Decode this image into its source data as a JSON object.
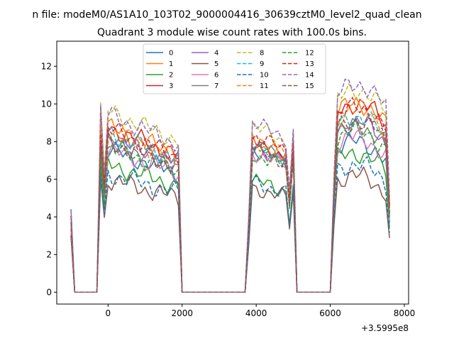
{
  "chart_data": {
    "type": "line",
    "suptitle": "n file: modeM0/AS1A10_103T02_9000004416_30639cztM0_level2_quad_clean",
    "title": "Quadrant 3 module wise count rates with 100.0s bins.",
    "xlabel": "",
    "ylabel": "",
    "x_offset_text": "+3.5995e8",
    "xlim": [
      -1385,
      8115
    ],
    "ylim": [
      -0.63,
      13.33
    ],
    "xticks": [
      0,
      2000,
      4000,
      6000,
      8000
    ],
    "yticks": [
      0,
      2,
      4,
      6,
      8,
      10,
      12
    ],
    "grid": false,
    "legend_position": "upper center",
    "legend_columns": 4,
    "x_segments": [
      {
        "from": -1000,
        "to": 7600,
        "step": 100
      }
    ],
    "series": [
      {
        "name": "0",
        "color": "#1f77b4",
        "dash": "solid",
        "peak1": 7.7,
        "peak2": 7.7,
        "peak3": 8.2
      },
      {
        "name": "1",
        "color": "#ff7f0e",
        "dash": "solid",
        "peak1": 8.9,
        "peak2": 8.1,
        "peak3": 10.2
      },
      {
        "name": "2",
        "color": "#2ca02c",
        "dash": "solid",
        "peak1": 6.9,
        "peak2": 6.0,
        "peak3": 7.6
      },
      {
        "name": "3",
        "color": "#d62728",
        "dash": "solid",
        "peak1": 8.9,
        "peak2": 8.0,
        "peak3": 10.2
      },
      {
        "name": "4",
        "color": "#9467bd",
        "dash": "solid",
        "peak1": 8.3,
        "peak2": 7.8,
        "peak3": 9.2
      },
      {
        "name": "5",
        "color": "#8c564b",
        "dash": "solid",
        "peak1": 6.1,
        "peak2": 5.6,
        "peak3": 6.4
      },
      {
        "name": "6",
        "color": "#e377c2",
        "dash": "solid",
        "peak1": 7.7,
        "peak2": 7.5,
        "peak3": 8.4
      },
      {
        "name": "7",
        "color": "#7f7f7f",
        "dash": "solid",
        "peak1": 8.2,
        "peak2": 7.8,
        "peak3": 9.0
      },
      {
        "name": "8",
        "color": "#bcbd22",
        "dash": "dashed",
        "peak1": 9.8,
        "peak2": 8.9,
        "peak3": 10.9
      },
      {
        "name": "9",
        "color": "#17becf",
        "dash": "dashed",
        "peak1": 8.6,
        "peak2": 7.9,
        "peak3": 9.5
      },
      {
        "name": "10",
        "color": "#1f77b4",
        "dash": "dashed",
        "peak1": 6.4,
        "peak2": 5.9,
        "peak3": 7.0
      },
      {
        "name": "11",
        "color": "#ff7f0e",
        "dash": "dashed",
        "peak1": 8.7,
        "peak2": 8.1,
        "peak3": 9.9
      },
      {
        "name": "12",
        "color": "#2ca02c",
        "dash": "dashed",
        "peak1": 7.8,
        "peak2": 7.4,
        "peak3": 8.8
      },
      {
        "name": "13",
        "color": "#d62728",
        "dash": "dashed",
        "peak1": 8.8,
        "peak2": 8.4,
        "peak3": 10.0
      },
      {
        "name": "14",
        "color": "#9467bd",
        "dash": "dashed",
        "peak1": 9.6,
        "peak2": 9.1,
        "peak3": 11.2
      },
      {
        "name": "15",
        "color": "#8c564b",
        "dash": "dashed",
        "peak1": 8.1,
        "peak2": 7.7,
        "peak3": 9.3
      }
    ]
  }
}
